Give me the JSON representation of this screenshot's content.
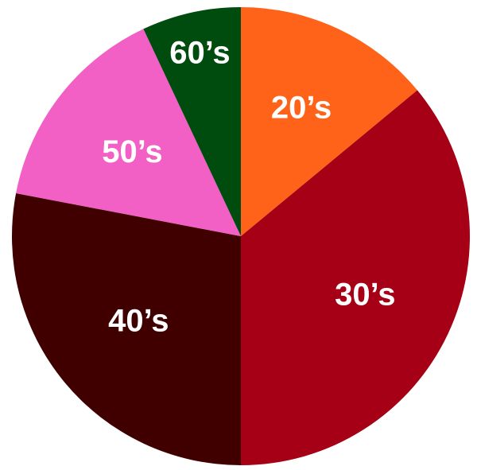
{
  "chart_data": {
    "type": "pie",
    "title": "",
    "start_angle": "12 o'clock",
    "direction": "clockwise",
    "categories": [
      "20’s",
      "30’s",
      "40’s",
      "50’s",
      "60’s"
    ],
    "values": [
      14,
      36,
      28,
      15,
      7
    ],
    "unit": "percent",
    "colors": [
      "#FF6319",
      "#A50015",
      "#400000",
      "#F25FC5",
      "#004B0E"
    ],
    "legend": "none",
    "labels_inside_slices": true
  }
}
